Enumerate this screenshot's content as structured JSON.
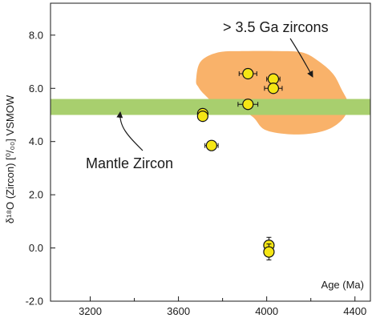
{
  "chart_data": {
    "type": "scatter",
    "title": "",
    "xlabel": "Age (Ma)",
    "ylabel": "δ¹⁸O (Zircon) [⁰/₀₀] VSMOW",
    "xlim": [
      3020,
      4470
    ],
    "ylim": [
      -2.0,
      9.2
    ],
    "x_ticks": [
      3200,
      3600,
      4000,
      4400
    ],
    "x_minor_ticks": [
      3400,
      3800,
      4200
    ],
    "y_ticks": [
      -2.0,
      0.0,
      2.0,
      4.0,
      6.0,
      8.0
    ],
    "y_tick_labels": [
      "-2.0",
      "0.0",
      "2.0",
      "4.0",
      "6.0",
      "8.0"
    ],
    "grid": false,
    "points": [
      {
        "x": 3915,
        "y": 6.55,
        "xerr": 40,
        "yerr": 0.15
      },
      {
        "x": 4030,
        "y": 6.35,
        "xerr": 30,
        "yerr": 0.15
      },
      {
        "x": 4030,
        "y": 6.0,
        "xerr": 40,
        "yerr": 0.15
      },
      {
        "x": 3915,
        "y": 5.4,
        "xerr": 45,
        "yerr": 0.15
      },
      {
        "x": 3710,
        "y": 5.05,
        "xerr": 20,
        "yerr": 0.15
      },
      {
        "x": 3710,
        "y": 4.95,
        "xerr": 20,
        "yerr": 0.15
      },
      {
        "x": 3750,
        "y": 3.85,
        "xerr": 30,
        "yerr": 0.15
      },
      {
        "x": 4010,
        "y": 0.1,
        "xerr": 15,
        "yerr": 0.3
      },
      {
        "x": 4010,
        "y": -0.15,
        "xerr": 20,
        "yerr": 0.3
      }
    ],
    "mantle_band": {
      "label": "Mantle Zircon",
      "y_range": [
        5.0,
        5.6
      ]
    },
    "old_zircon_field": {
      "label": "> 3.5 Ga zircons",
      "polygon": [
        [
          3680,
          6.3
        ],
        [
          3700,
          7.0
        ],
        [
          3780,
          7.35
        ],
        [
          3900,
          7.4
        ],
        [
          4050,
          7.4
        ],
        [
          4160,
          7.35
        ],
        [
          4230,
          7.05
        ],
        [
          4300,
          6.55
        ],
        [
          4340,
          5.95
        ],
        [
          4370,
          5.4
        ],
        [
          4350,
          4.9
        ],
        [
          4290,
          4.5
        ],
        [
          4200,
          4.3
        ],
        [
          4090,
          4.28
        ],
        [
          3990,
          4.45
        ],
        [
          3940,
          4.9
        ],
        [
          3880,
          5.2
        ],
        [
          3780,
          5.35
        ],
        [
          3720,
          5.75
        ],
        [
          3690,
          6.05
        ]
      ]
    },
    "colors": {
      "field": "#f9b26a",
      "band": "#a8cf6e",
      "point_fill": "#f5e614",
      "point_stroke": "#111111",
      "axis": "#1a1a1a"
    }
  }
}
